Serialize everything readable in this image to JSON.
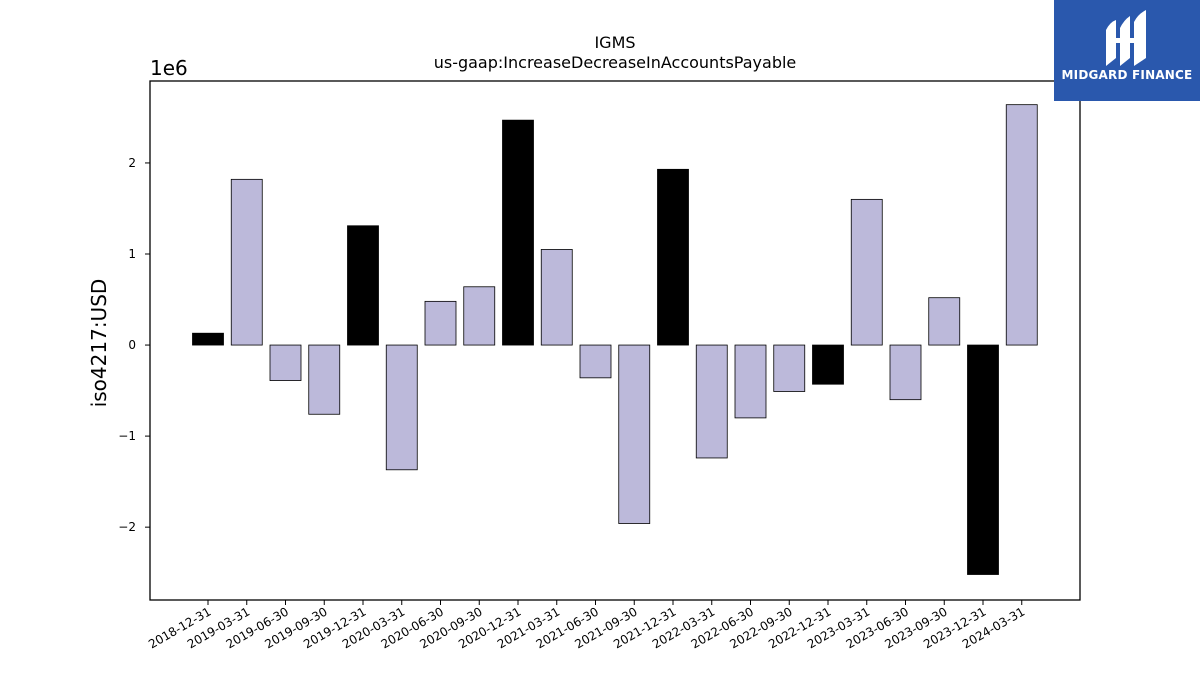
{
  "chart_data": {
    "type": "bar",
    "title": "IGMS",
    "subtitle": "us-gaap:IncreaseDecreaseInAccountsPayable",
    "xlabel": "",
    "ylabel": "iso4217:USD",
    "y_offset_label": "1e6",
    "ylim": [
      -2.8,
      2.9
    ],
    "yticks": [
      -2,
      -1,
      0,
      1,
      2
    ],
    "ytick_labels": [
      "−2",
      "−1",
      "0",
      "1",
      "2"
    ],
    "grid": false,
    "categories": [
      "2018-12-31",
      "2019-03-31",
      "2019-06-30",
      "2019-09-30",
      "2019-12-31",
      "2020-03-31",
      "2020-06-30",
      "2020-09-30",
      "2020-12-31",
      "2021-03-31",
      "2021-06-30",
      "2021-09-30",
      "2021-12-31",
      "2022-03-31",
      "2022-06-30",
      "2022-09-30",
      "2022-12-31",
      "2023-03-31",
      "2023-06-30",
      "2023-09-30",
      "2023-12-31",
      "2024-03-31"
    ],
    "values": [
      0.13,
      1.82,
      -0.39,
      -0.76,
      1.31,
      -1.37,
      0.48,
      0.64,
      2.47,
      1.05,
      -0.36,
      -1.96,
      1.93,
      -1.24,
      -0.8,
      -0.51,
      -0.43,
      1.6,
      -0.6,
      0.52,
      -2.52,
      2.64
    ],
    "bar_colors": [
      "#000000",
      "#bcb9da",
      "#bcb9da",
      "#bcb9da",
      "#000000",
      "#bcb9da",
      "#bcb9da",
      "#bcb9da",
      "#000000",
      "#bcb9da",
      "#bcb9da",
      "#bcb9da",
      "#000000",
      "#bcb9da",
      "#bcb9da",
      "#bcb9da",
      "#000000",
      "#bcb9da",
      "#bcb9da",
      "#bcb9da",
      "#000000",
      "#bcb9da"
    ]
  },
  "logo": {
    "text": "MIDGARD FINANCE",
    "background": "#2a58ad"
  }
}
